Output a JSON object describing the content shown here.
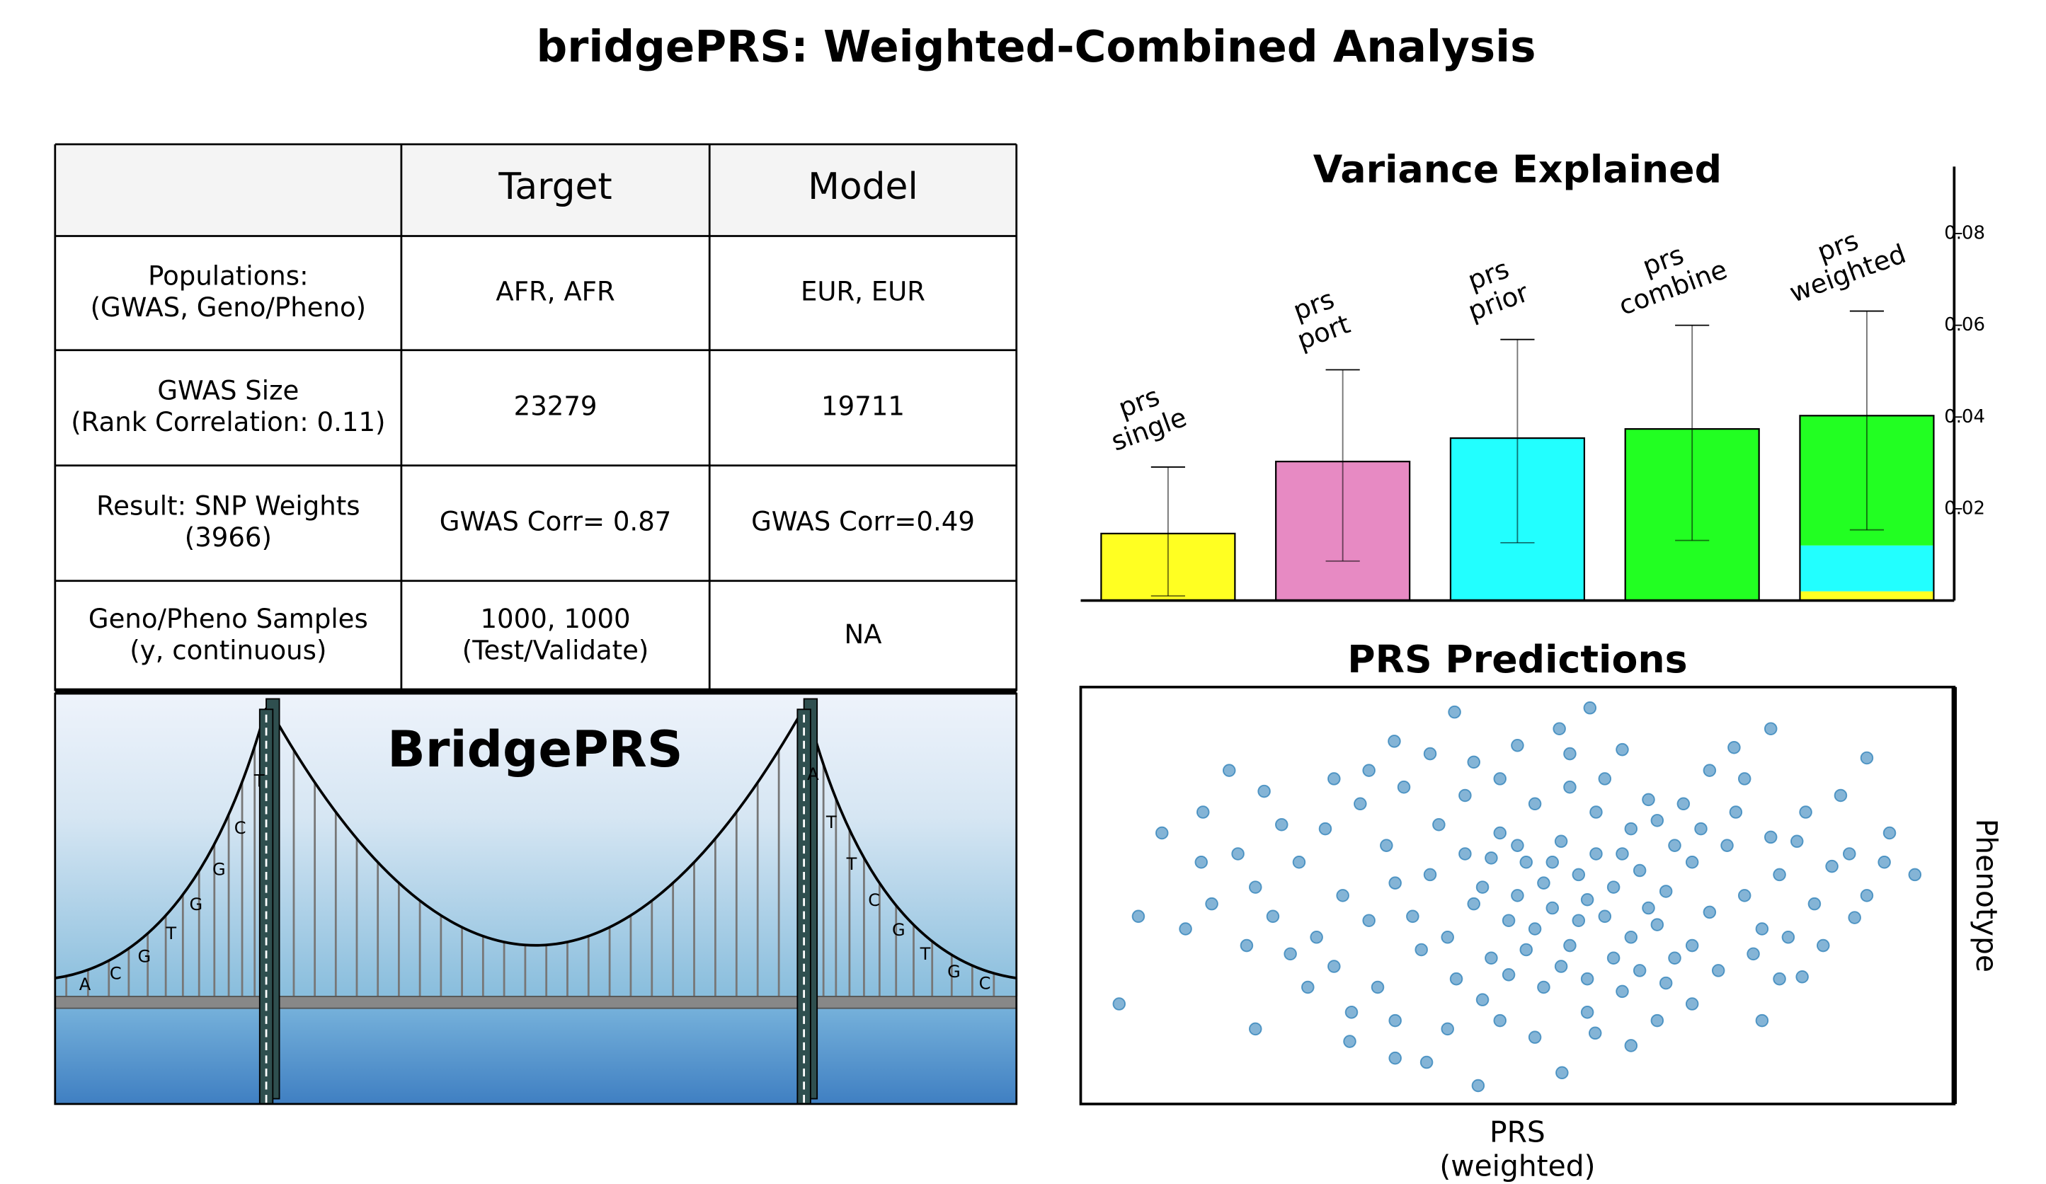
{
  "title": "bridgePRS: Weighted-Combined Analysis",
  "table": {
    "header": [
      "Target",
      "Model"
    ],
    "rows": [
      {
        "label": [
          "Populations:",
          "(GWAS, Geno/Pheno)"
        ],
        "target": [
          "AFR, AFR"
        ],
        "model": [
          "EUR, EUR"
        ]
      },
      {
        "label": [
          "GWAS Size",
          "(Rank Correlation: 0.11)"
        ],
        "target": [
          "23279"
        ],
        "model": [
          "19711"
        ]
      },
      {
        "label": [
          "Result: SNP Weights",
          "(3966)"
        ],
        "target": [
          "GWAS Corr= 0.87"
        ],
        "model": [
          "GWAS Corr=0.49"
        ]
      },
      {
        "label": [
          "Geno/Pheno Samples",
          "(y, continuous)"
        ],
        "target": [
          "1000, 1000",
          "(Test/Validate)"
        ],
        "model": [
          "NA"
        ]
      }
    ]
  },
  "bridge": {
    "label": "BridgePRS",
    "left_letters": [
      "A",
      "C",
      "G",
      "T",
      "G",
      "G",
      "C",
      "T"
    ],
    "right_letters": [
      "A",
      "T",
      "T",
      "C",
      "G",
      "T",
      "G",
      "C"
    ]
  },
  "chart_data": [
    {
      "type": "bar",
      "title": "Variance Explained",
      "categories": [
        [
          "prs",
          "single"
        ],
        [
          "prs",
          "port"
        ],
        [
          "prs",
          "prior"
        ],
        [
          "prs",
          "combine"
        ],
        [
          "prs",
          "weighted"
        ]
      ],
      "values": [
        0.0146,
        0.0303,
        0.0354,
        0.0374,
        0.0403
      ],
      "error_low": [
        0.001,
        0.0086,
        0.0126,
        0.0131,
        0.0154
      ],
      "error_high": [
        0.0291,
        0.0503,
        0.0569,
        0.06,
        0.0631
      ],
      "colors": [
        "#ffff22",
        "#e78ac3",
        "#22ffff",
        "#22ff22",
        null
      ],
      "weighted_parts": {
        "values": [
          0.002,
          0.01,
          0.0283
        ],
        "colors": [
          "#ffff22",
          "#22ffff",
          "#22ff22"
        ]
      },
      "ylim": [
        0,
        0.0946
      ],
      "yticks": [
        0.02,
        0.04,
        0.06,
        0.08
      ]
    },
    {
      "type": "scatter",
      "title": "PRS Predictions",
      "xlabel": [
        "PRS",
        "(weighted)"
      ],
      "ylabel": "Phenotype",
      "color": "#1f77b4",
      "xlim": [
        0,
        100
      ],
      "ylim": [
        0,
        100
      ],
      "x": [
        4.4,
        6.6,
        9.3,
        42.8,
        58.3,
        45.5,
        55.1,
        95.5,
        92.6,
        90,
        78,
        79,
        30.8,
        39.6,
        20,
        36,
        58.9,
        74.8,
        35.9,
        54.8,
        13.8,
        88.6,
        82.6,
        30,
        35,
        38,
        40,
        42,
        44,
        45,
        46,
        47,
        48,
        49,
        50,
        51,
        52,
        53,
        54,
        55,
        56,
        57,
        58,
        59,
        60,
        61,
        62,
        63,
        64,
        65,
        66,
        67,
        68,
        70,
        72,
        74,
        76,
        78,
        80,
        82,
        84,
        86,
        25,
        27,
        28,
        29,
        32,
        33,
        34,
        36,
        37,
        39,
        41,
        43,
        44,
        46,
        47,
        48,
        49,
        50,
        51,
        52,
        53,
        54,
        55,
        56,
        57,
        58,
        59,
        60,
        61,
        62,
        63,
        64,
        65,
        66,
        67,
        68,
        69,
        70,
        71,
        73,
        75,
        77,
        79,
        81,
        83,
        85,
        88,
        20,
        22,
        18,
        15,
        23,
        24,
        26,
        31,
        19,
        12,
        14,
        17,
        21,
        72,
        76,
        80,
        87,
        90,
        92,
        45,
        50,
        56,
        62,
        40,
        48,
        52,
        58,
        66,
        70,
        36,
        42,
        63,
        29,
        33
      ],
      "values": [
        24,
        45,
        65,
        94,
        95,
        4.4,
        7.5,
        55,
        65,
        83,
        20,
        90,
        15,
        10,
        18,
        11,
        17,
        85.5,
        87,
        90,
        58,
        44.7,
        30.5,
        50,
        62,
        45,
        55,
        40,
        60,
        48,
        52,
        35,
        65,
        44,
        50,
        58,
        42,
        53,
        47,
        63,
        38,
        55,
        49,
        70,
        45,
        52,
        60,
        40,
        56,
        47,
        68,
        51,
        35,
        58,
        46,
        62,
        50,
        42,
        55,
        63,
        48,
        57,
        58,
        40,
        66,
        33,
        72,
        44,
        28,
        53,
        76,
        37,
        67,
        30,
        74,
        25,
        59,
        78,
        31,
        62,
        37,
        72,
        28,
        58,
        33,
        76,
        44,
        30,
        60,
        78,
        35,
        27,
        66,
        32,
        73,
        43,
        29,
        62,
        72,
        38,
        66,
        32,
        70,
        36,
        64,
        40,
        70,
        38,
        60,
        52,
        45,
        60,
        48,
        67,
        36,
        28,
        22,
        38,
        42,
        70,
        80,
        75,
        80,
        78,
        30,
        74,
        50,
        58,
        82,
        86,
        84,
        85,
        84,
        20,
        16,
        22,
        20,
        24,
        20,
        18,
        14,
        78,
        80
      ]
    }
  ]
}
